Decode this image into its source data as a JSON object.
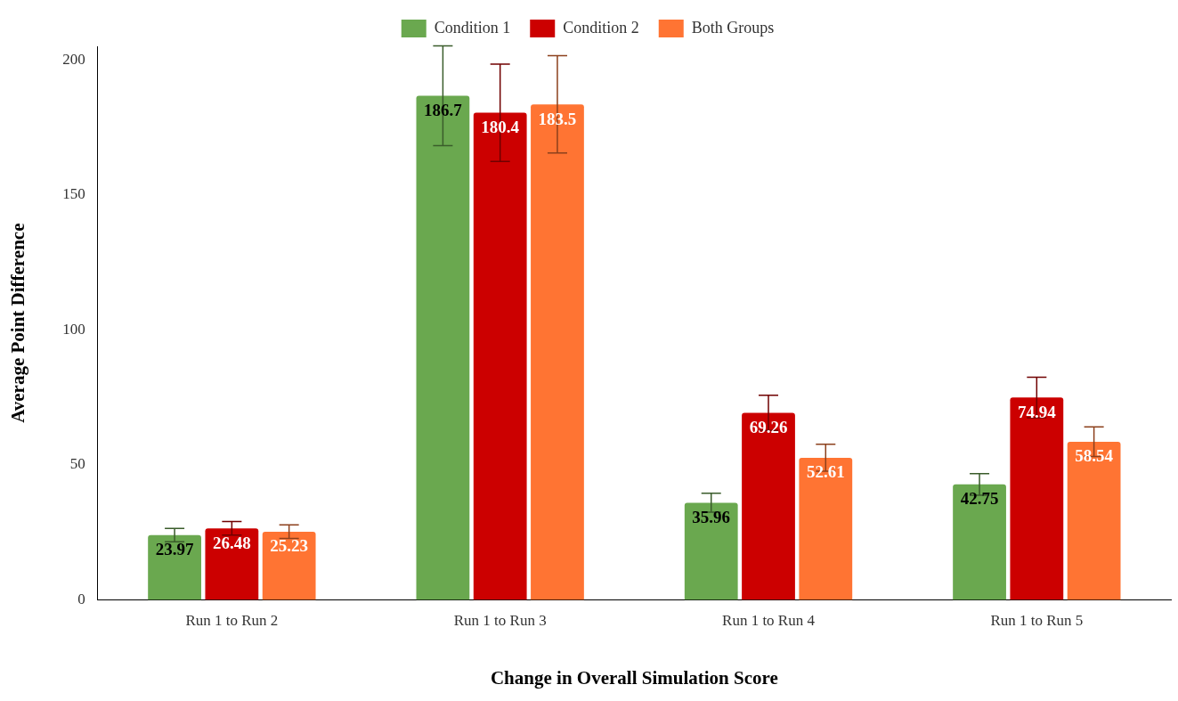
{
  "chart_data": {
    "type": "bar",
    "xlabel": "Change in Overall Simulation Score",
    "ylabel": "Average Point Difference",
    "categories": [
      "Run 1 to Run 2",
      "Run 1 to Run 3",
      "Run 1 to Run 4",
      "Run 1 to Run 5"
    ],
    "series": [
      {
        "name": "Condition 1",
        "color": "#6aa84f",
        "values": [
          23.97,
          186.7,
          35.96,
          42.75
        ],
        "errors": [
          2.5,
          18.5,
          3.5,
          4
        ]
      },
      {
        "name": "Condition 2",
        "color": "#cc0000",
        "values": [
          26.48,
          180.4,
          69.26,
          74.94
        ],
        "errors": [
          2.5,
          18,
          6.5,
          7.5
        ]
      },
      {
        "name": "Both Groups",
        "color": "#ff7433",
        "values": [
          25.23,
          183.5,
          52.61,
          58.54
        ],
        "errors": [
          2.5,
          18,
          5,
          5.5
        ]
      }
    ],
    "ylim": [
      0,
      205
    ],
    "yticks": [
      0,
      50,
      100,
      150,
      200
    ],
    "grid": false,
    "legend": "top",
    "data_labels": true
  }
}
